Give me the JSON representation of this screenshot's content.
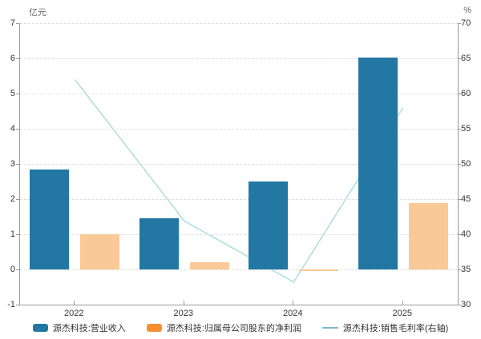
{
  "chart_data": {
    "type": "combo-bar-line",
    "categories": [
      "2022",
      "2023",
      "2024",
      "2025"
    ],
    "series": [
      {
        "name": "源杰科技:营业收入",
        "type": "bar",
        "axis": "left",
        "color": "#2278a3",
        "legend_color": "#2278a3",
        "values": [
          2.83,
          1.45,
          2.5,
          6.02
        ]
      },
      {
        "name": "源杰科技:归属母公司股东的净利润",
        "type": "bar",
        "axis": "left",
        "color": "#f9c997",
        "legend_color": "#f5902c",
        "values": [
          1.0,
          0.2,
          -0.05,
          1.89
        ]
      },
      {
        "name": "源杰科技:销售毛利率(右轴)",
        "type": "line",
        "axis": "right",
        "color": "#aadde2",
        "legend_color": "#7abccf",
        "values": [
          62.0,
          41.9,
          33.2,
          58.0
        ]
      }
    ],
    "left_axis": {
      "unit": "亿元",
      "min": -1,
      "max": 7,
      "step": 1,
      "ticks": [
        7,
        6,
        5,
        4,
        3,
        2,
        1,
        0,
        -1
      ]
    },
    "right_axis": {
      "unit": "%",
      "min": 30,
      "max": 70,
      "step": 5,
      "ticks": [
        70,
        65,
        60,
        55,
        50,
        45,
        40,
        35,
        30
      ]
    },
    "grid": {
      "horizontal": true,
      "style": "dashed",
      "color": "#dddddd"
    },
    "axis_line_color": "#999999",
    "legend_position": "bottom"
  }
}
